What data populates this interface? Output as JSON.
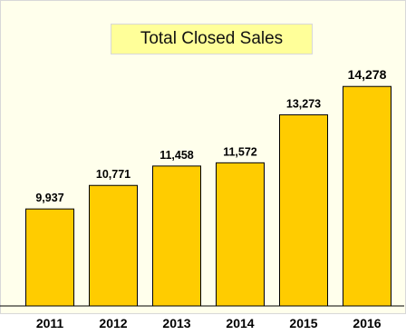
{
  "chart_data": {
    "type": "bar",
    "title": "Total Closed Sales",
    "categories": [
      "2011",
      "2012",
      "2013",
      "2014",
      "2015",
      "2016"
    ],
    "values": [
      9937,
      10771,
      11458,
      11572,
      13273,
      14278
    ],
    "value_labels": [
      "9,937",
      "10,771",
      "11,458",
      "11,572",
      "13,273",
      "14,278"
    ],
    "xlabel": "",
    "ylabel": "",
    "ylim": [
      6500,
      14800
    ],
    "grid": false,
    "bar_color": "#ffcc00",
    "bar_edge_color": "#000000",
    "title_bg_color": "#ffff99",
    "plot_bg_color": "#ffffec"
  }
}
